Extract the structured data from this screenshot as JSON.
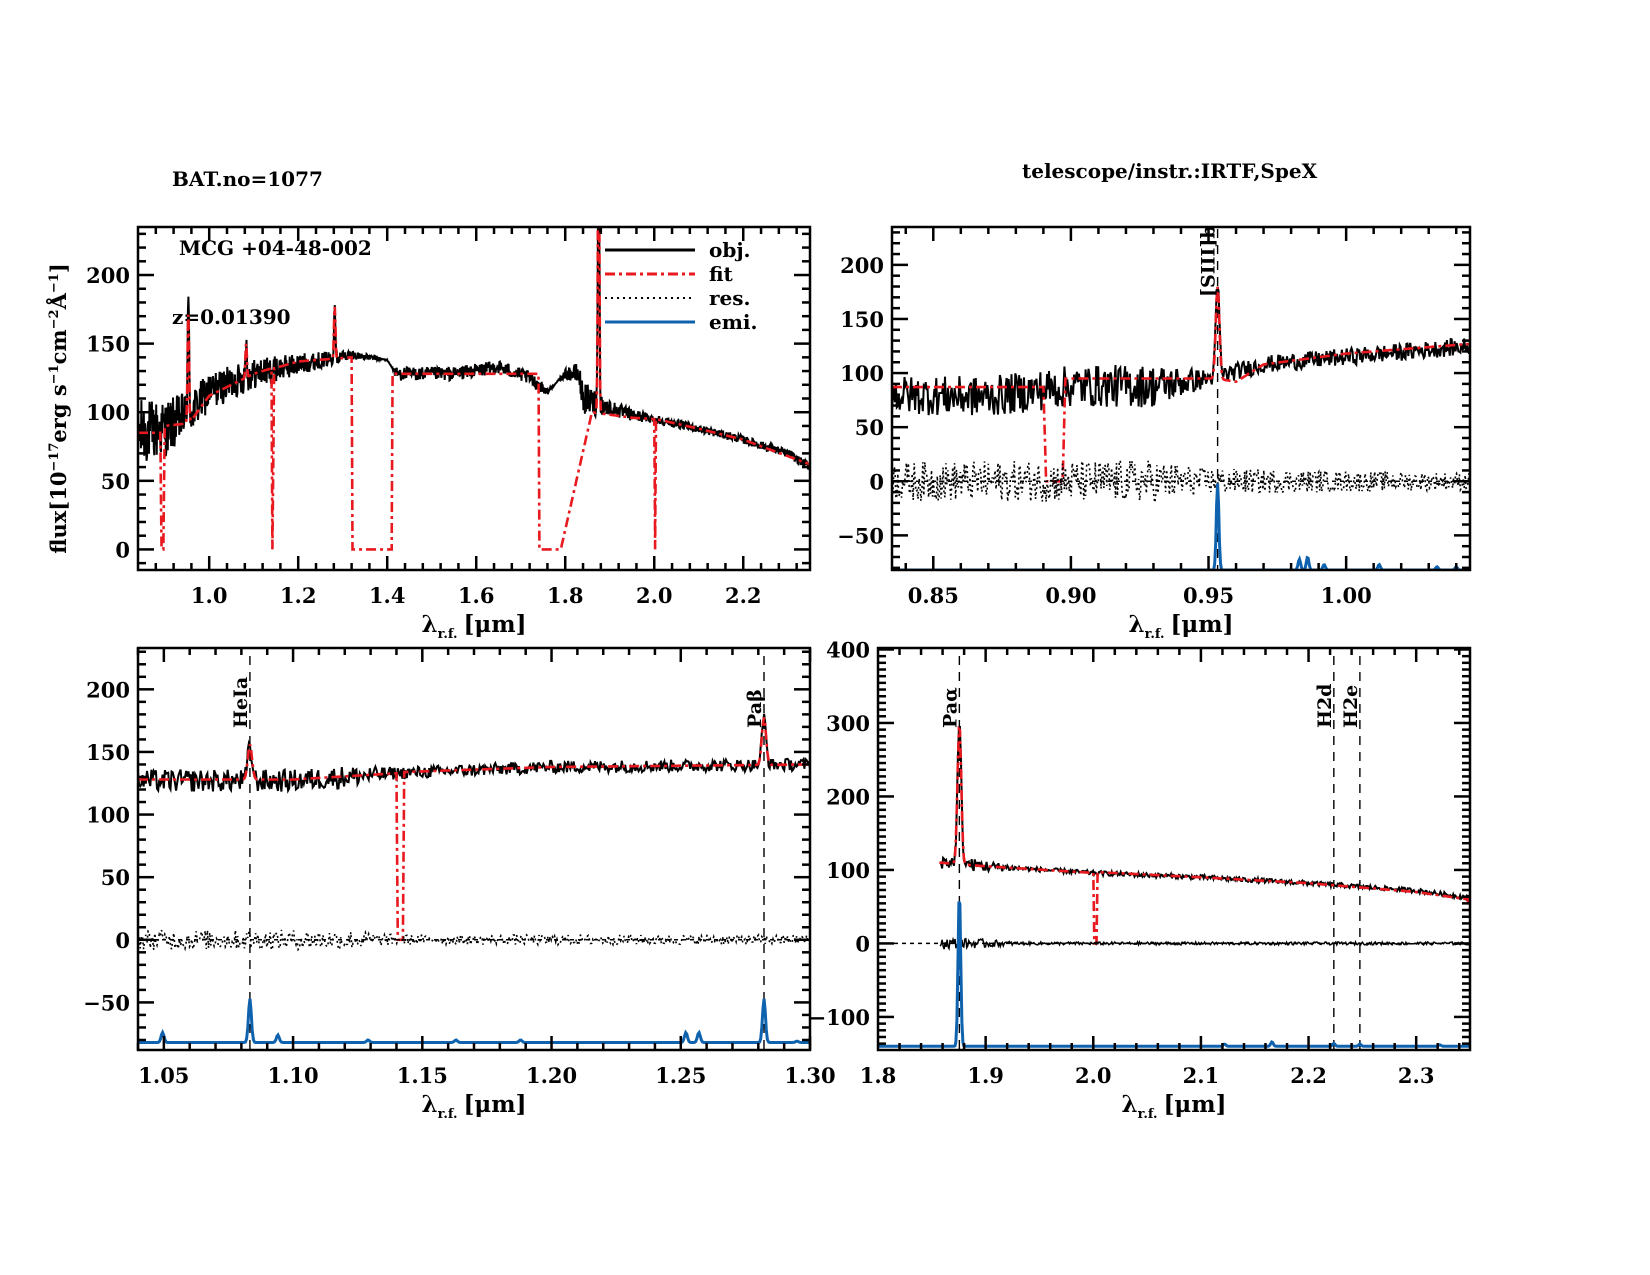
{
  "header": {
    "object_lines": [
      "BAT.no=1077",
      " MCG +04-48-002",
      "z=0.01390"
    ],
    "instrument": "telescope/instr.:IRTF,SpeX"
  },
  "colors": {
    "obj": "#000000",
    "fit": "#e8191f",
    "res": "#000000",
    "emi": "#0f62ad"
  },
  "chart_data": [
    {
      "id": "full",
      "type": "line",
      "title": "",
      "xlabel": "λr.f. [μm]",
      "ylabel": "flux[10^-17 erg s^-1 cm^-2 Å^-1]",
      "xlim": [
        0.84,
        2.35
      ],
      "ylim": [
        -15,
        235
      ],
      "xticks": [
        1.0,
        1.2,
        1.4,
        1.6,
        1.8,
        2.0,
        2.2
      ],
      "xtick_labels": [
        "1.0",
        "1.2",
        "1.4",
        "1.6",
        "1.8",
        "2.0",
        "2.2"
      ],
      "yticks": [
        0,
        50,
        100,
        150,
        200
      ],
      "ytick_labels": [
        "0",
        "50",
        "100",
        "150",
        "200"
      ],
      "legend": {
        "placement": "top-right",
        "entries": [
          "obj.",
          "fit",
          "res.",
          "emi."
        ]
      },
      "series": [
        {
          "name": "obj.",
          "style": "solid",
          "continuum": [
            [
              0.84,
              85
            ],
            [
              0.9,
              88
            ],
            [
              0.96,
              100
            ],
            [
              1.0,
              115
            ],
            [
              1.1,
              128
            ],
            [
              1.2,
              135
            ],
            [
              1.32,
              142
            ],
            [
              1.4,
              138
            ],
            [
              1.42,
              128
            ],
            [
              1.55,
              128
            ],
            [
              1.65,
              133
            ],
            [
              1.72,
              125
            ],
            [
              1.76,
              115
            ],
            [
              1.8,
              128
            ],
            [
              1.83,
              128
            ],
            [
              1.84,
              110
            ],
            [
              1.88,
              105
            ],
            [
              1.95,
              98
            ],
            [
              2.0,
              95
            ],
            [
              2.1,
              88
            ],
            [
              2.2,
              80
            ],
            [
              2.3,
              70
            ],
            [
              2.35,
              60
            ]
          ],
          "noise": [
            [
              0.84,
              25
            ],
            [
              1.0,
              14
            ],
            [
              1.2,
              8
            ],
            [
              1.33,
              3
            ],
            [
              1.41,
              0
            ],
            [
              1.42,
              5
            ],
            [
              1.74,
              5
            ],
            [
              1.78,
              0
            ],
            [
              1.85,
              12
            ],
            [
              1.9,
              6
            ],
            [
              2.0,
              3
            ],
            [
              2.35,
              3
            ]
          ],
          "lines": [
            [
              0.953,
              80
            ],
            [
              1.083,
              25
            ],
            [
              1.282,
              38
            ],
            [
              1.875,
              200
            ]
          ]
        },
        {
          "name": "fit",
          "style": "dashdot",
          "continuum": [
            [
              0.84,
              85
            ],
            [
              0.89,
              85
            ],
            [
              0.893,
              0
            ],
            [
              0.897,
              0
            ],
            [
              0.9,
              90
            ],
            [
              0.955,
              92
            ],
            [
              1.0,
              112
            ],
            [
              1.1,
              128
            ],
            [
              1.14,
              132
            ],
            [
              1.142,
              0
            ],
            [
              1.146,
              132
            ],
            [
              1.2,
              137
            ],
            [
              1.32,
              140
            ],
            [
              1.322,
              0
            ],
            [
              1.41,
              0
            ],
            [
              1.412,
              128
            ],
            [
              1.6,
              128
            ],
            [
              1.74,
              128
            ],
            [
              1.742,
              0
            ],
            [
              1.79,
              0
            ],
            [
              1.86,
              100
            ],
            [
              1.95,
              96
            ],
            [
              2.0,
              95
            ],
            [
              2.002,
              0
            ],
            [
              2.004,
              95
            ],
            [
              2.1,
              88
            ],
            [
              2.2,
              80
            ],
            [
              2.35,
              62
            ]
          ],
          "lines": [
            [
              0.953,
              80
            ],
            [
              1.083,
              25
            ],
            [
              1.282,
              38
            ],
            [
              1.875,
              220
            ]
          ]
        }
      ]
    },
    {
      "id": "zoom-siii",
      "type": "line",
      "xlabel": "λr.f. [μm]",
      "xlim": [
        0.835,
        1.045
      ],
      "ylim": [
        -82,
        235
      ],
      "xticks": [
        0.85,
        0.9,
        0.95,
        1.0
      ],
      "xtick_labels": [
        "0.85",
        "0.90",
        "0.95",
        "1.00"
      ],
      "yticks": [
        -50,
        0,
        50,
        100,
        150,
        200
      ],
      "ytick_labels": [
        "−50",
        "0",
        "50",
        "100",
        "150",
        "200"
      ],
      "line_markers": [
        {
          "label": "[SIII]b",
          "x": 0.9533
        }
      ],
      "series": [
        {
          "name": "obj.",
          "style": "solid",
          "continuum": [
            [
              0.835,
              80
            ],
            [
              0.87,
              78
            ],
            [
              0.9,
              88
            ],
            [
              0.93,
              88
            ],
            [
              0.95,
              95
            ],
            [
              0.97,
              108
            ],
            [
              1.0,
              115
            ],
            [
              1.045,
              125
            ]
          ],
          "noise": [
            [
              0.835,
              18
            ],
            [
              0.93,
              20
            ],
            [
              0.95,
              8
            ],
            [
              1.045,
              8
            ]
          ],
          "lines": [
            [
              0.9533,
              85
            ]
          ]
        },
        {
          "name": "fit",
          "style": "dashdot",
          "continuum": [
            [
              0.835,
              87
            ],
            [
              0.89,
              87
            ],
            [
              0.891,
              0
            ],
            [
              0.897,
              0
            ],
            [
              0.898,
              95
            ],
            [
              0.9525,
              95
            ],
            [
              0.96,
              92
            ],
            [
              0.97,
              108
            ],
            [
              1.0,
              118
            ],
            [
              1.045,
              127
            ]
          ],
          "lines": [
            [
              0.9533,
              85
            ]
          ]
        },
        {
          "name": "res.",
          "style": "dotted",
          "continuum": [
            [
              0.835,
              0
            ],
            [
              1.045,
              0
            ]
          ],
          "noise": [
            [
              0.835,
              18
            ],
            [
              0.93,
              20
            ],
            [
              0.95,
              12
            ],
            [
              1.045,
              8
            ]
          ]
        },
        {
          "name": "emi.",
          "style": "solid",
          "base": -82,
          "lines": [
            [
              0.9533,
              80
            ],
            [
              0.983,
              10
            ],
            [
              0.986,
              12
            ],
            [
              0.992,
              5
            ],
            [
              1.012,
              5
            ],
            [
              1.033,
              3
            ],
            [
              1.04,
              3
            ]
          ]
        }
      ]
    },
    {
      "id": "zoom-pab",
      "type": "line",
      "xlabel": "λr.f. [μm]",
      "xlim": [
        1.04,
        1.3
      ],
      "ylim": [
        -88,
        233
      ],
      "xticks": [
        1.05,
        1.1,
        1.15,
        1.2,
        1.25,
        1.3
      ],
      "xtick_labels": [
        "1.05",
        "1.10",
        "1.15",
        "1.20",
        "1.25",
        "1.30"
      ],
      "yticks": [
        -50,
        0,
        50,
        100,
        150,
        200
      ],
      "ytick_labels": [
        "−50",
        "0",
        "50",
        "100",
        "150",
        "200"
      ],
      "line_markers": [
        {
          "label": "HeIa",
          "x": 1.0833
        },
        {
          "label": "Paβ",
          "x": 1.2822
        }
      ],
      "series": [
        {
          "name": "obj.",
          "style": "solid",
          "continuum": [
            [
              1.04,
              127
            ],
            [
              1.1,
              127
            ],
            [
              1.14,
              133
            ],
            [
              1.2,
              138
            ],
            [
              1.3,
              140
            ]
          ],
          "noise": [
            [
              1.04,
              9
            ],
            [
              1.12,
              9
            ],
            [
              1.14,
              5
            ],
            [
              1.3,
              5
            ]
          ],
          "lines": [
            [
              1.0833,
              28
            ],
            [
              1.2822,
              38
            ]
          ]
        },
        {
          "name": "fit",
          "style": "dashdot",
          "continuum": [
            [
              1.04,
              128
            ],
            [
              1.1,
              128
            ],
            [
              1.14,
              133
            ],
            [
              1.1405,
              0
            ],
            [
              1.1425,
              0
            ],
            [
              1.143,
              134
            ],
            [
              1.2,
              138
            ],
            [
              1.3,
              140
            ]
          ],
          "lines": [
            [
              1.0833,
              28
            ],
            [
              1.2822,
              38
            ]
          ]
        },
        {
          "name": "res.",
          "style": "dotted",
          "continuum": [
            [
              1.04,
              0
            ],
            [
              1.3,
              0
            ]
          ],
          "noise": [
            [
              1.04,
              8
            ],
            [
              1.12,
              8
            ],
            [
              1.14,
              4
            ],
            [
              1.3,
              4
            ]
          ]
        },
        {
          "name": "emi.",
          "style": "solid",
          "base": -82,
          "lines": [
            [
              1.0495,
              8
            ],
            [
              1.0833,
              35
            ],
            [
              1.0941,
              6
            ],
            [
              1.129,
              2
            ],
            [
              1.163,
              2
            ],
            [
              1.188,
              2
            ],
            [
              1.252,
              8
            ],
            [
              1.257,
              8
            ],
            [
              1.2822,
              35
            ],
            [
              1.295,
              1
            ]
          ]
        }
      ]
    },
    {
      "id": "zoom-paa",
      "type": "line",
      "xlabel": "λr.f. [μm]",
      "xlim": [
        1.8,
        2.35
      ],
      "ylim": [
        -145,
        402
      ],
      "xticks": [
        1.8,
        1.9,
        2.0,
        2.1,
        2.2,
        2.3
      ],
      "xtick_labels": [
        "1.8",
        "1.9",
        "2.0",
        "2.1",
        "2.2",
        "2.3"
      ],
      "yticks": [
        -100,
        0,
        100,
        200,
        300,
        400
      ],
      "ytick_labels": [
        "−100",
        "0",
        "100",
        "200",
        "300",
        "400"
      ],
      "line_markers": [
        {
          "label": "Paα",
          "x": 1.8756
        },
        {
          "label": "H2d",
          "x": 2.2235
        },
        {
          "label": "H2e",
          "x": 2.2477
        }
      ],
      "series": [
        {
          "name": "obj.",
          "style": "solid",
          "continuum": [
            [
              1.857,
              112
            ],
            [
              1.9,
              105
            ],
            [
              2.0,
              96
            ],
            [
              2.1,
              90
            ],
            [
              2.2,
              82
            ],
            [
              2.3,
              72
            ],
            [
              2.35,
              62
            ]
          ],
          "noise": [
            [
              1.857,
              10
            ],
            [
              1.9,
              8
            ],
            [
              1.93,
              3
            ],
            [
              2.35,
              3
            ]
          ],
          "lines": [
            [
              1.8756,
              190
            ]
          ]
        },
        {
          "name": "fit",
          "style": "dashdot",
          "continuum": [
            [
              1.857,
              110
            ],
            [
              1.9,
              105
            ],
            [
              2.0,
              96
            ],
            [
              2.001,
              0
            ],
            [
              2.003,
              0
            ],
            [
              2.004,
              97
            ],
            [
              2.1,
              90
            ],
            [
              2.2,
              82
            ],
            [
              2.3,
              70
            ],
            [
              2.348,
              60
            ],
            [
              2.35,
              40
            ]
          ],
          "lines": [
            [
              1.8756,
              190
            ]
          ]
        },
        {
          "name": "res.",
          "style": "solid_thin",
          "continuum": [
            [
              1.857,
              0
            ],
            [
              2.35,
              0
            ]
          ],
          "noise": [
            [
              1.857,
              8
            ],
            [
              1.9,
              6
            ],
            [
              1.93,
              2
            ],
            [
              2.35,
              2
            ]
          ]
        },
        {
          "name": "emi.",
          "style": "solid",
          "base": -140,
          "lines": [
            [
              1.8756,
              210
            ],
            [
              2.122,
              3
            ],
            [
              2.166,
              6
            ],
            [
              2.2235,
              4
            ],
            [
              2.2477,
              3
            ],
            [
              2.322,
              2
            ]
          ]
        }
      ]
    }
  ]
}
